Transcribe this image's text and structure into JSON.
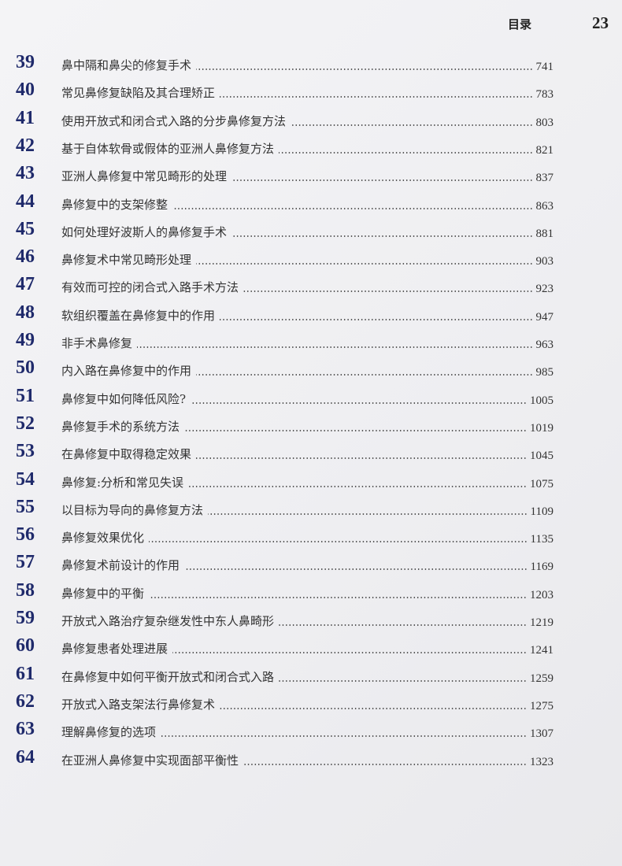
{
  "header": {
    "section_title": "目录",
    "page_number": "23"
  },
  "toc": [
    {
      "num": "39",
      "title": "鼻中隔和鼻尖的修复手术",
      "page": "741"
    },
    {
      "num": "40",
      "title": "常见鼻修复缺陷及其合理矫正",
      "page": "783"
    },
    {
      "num": "41",
      "title": "使用开放式和闭合式入路的分步鼻修复方法",
      "page": "803"
    },
    {
      "num": "42",
      "title": "基于自体软骨或假体的亚洲人鼻修复方法",
      "page": "821"
    },
    {
      "num": "43",
      "title": "亚洲人鼻修复中常见畸形的处理",
      "page": "837"
    },
    {
      "num": "44",
      "title": "鼻修复中的支架修整",
      "page": "863"
    },
    {
      "num": "45",
      "title": "如何处理好波斯人的鼻修复手术",
      "page": "881"
    },
    {
      "num": "46",
      "title": "鼻修复术中常见畸形处理",
      "page": "903"
    },
    {
      "num": "47",
      "title": "有效而可控的闭合式入路手术方法",
      "page": "923"
    },
    {
      "num": "48",
      "title": "软组织覆盖在鼻修复中的作用",
      "page": "947"
    },
    {
      "num": "49",
      "title": "非手术鼻修复",
      "page": "963"
    },
    {
      "num": "50",
      "title": "内入路在鼻修复中的作用",
      "page": "985"
    },
    {
      "num": "51",
      "title": "鼻修复中如何降低风险?",
      "page": "1005"
    },
    {
      "num": "52",
      "title": "鼻修复手术的系统方法",
      "page": "1019"
    },
    {
      "num": "53",
      "title": "在鼻修复中取得稳定效果",
      "page": "1045"
    },
    {
      "num": "54",
      "title": "鼻修复:分析和常见失误",
      "page": "1075"
    },
    {
      "num": "55",
      "title": "以目标为导向的鼻修复方法",
      "page": "1109"
    },
    {
      "num": "56",
      "title": "鼻修复效果优化",
      "page": "1135"
    },
    {
      "num": "57",
      "title": "鼻修复术前设计的作用",
      "page": "1169"
    },
    {
      "num": "58",
      "title": "鼻修复中的平衡",
      "page": "1203"
    },
    {
      "num": "59",
      "title": "开放式入路治疗复杂继发性中东人鼻畸形",
      "page": "1219"
    },
    {
      "num": "60",
      "title": "鼻修复患者处理进展",
      "page": "1241"
    },
    {
      "num": "61",
      "title": "在鼻修复中如何平衡开放式和闭合式入路",
      "page": "1259"
    },
    {
      "num": "62",
      "title": "开放式入路支架法行鼻修复术",
      "page": "1275"
    },
    {
      "num": "63",
      "title": "理解鼻修复的选项",
      "page": "1307"
    },
    {
      "num": "64",
      "title": "在亚洲人鼻修复中实现面部平衡性",
      "page": "1323"
    }
  ]
}
